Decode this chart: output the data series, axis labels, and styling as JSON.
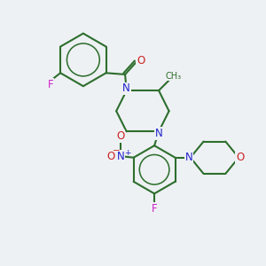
{
  "bg_color": "#eef1f4",
  "bond_color": "#2d6e2d",
  "N_color": "#2222cc",
  "O_color": "#cc2222",
  "F_color": "#cc22cc",
  "line_width": 1.5,
  "font_size": 8.5,
  "xlim": [
    0.5,
    8.5
  ],
  "ylim": [
    0.5,
    9.5
  ]
}
